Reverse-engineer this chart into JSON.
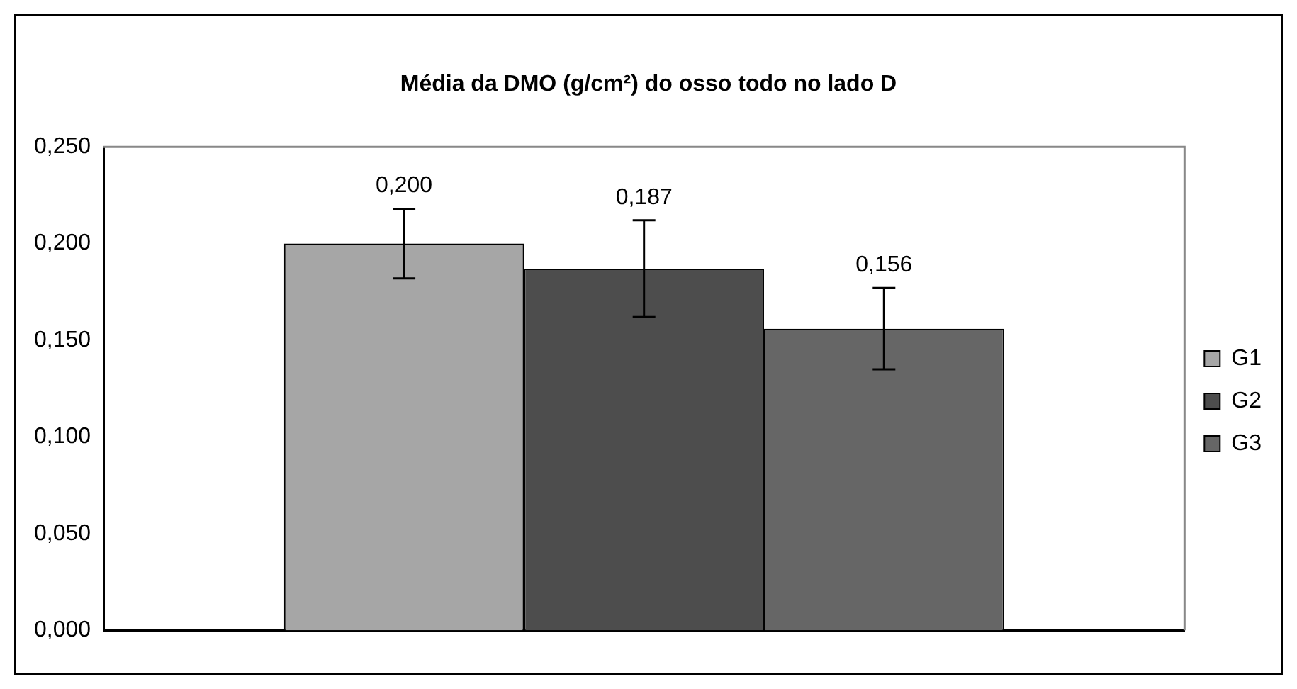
{
  "chart_data": {
    "type": "bar",
    "title": "Média da DMO (g/cm²) do osso todo no lado D",
    "categories": [
      null
    ],
    "series": [
      {
        "name": "G1",
        "color": "#a6a6a6",
        "values": [
          0.2
        ],
        "errors": [
          0.018
        ],
        "value_labels": [
          "0,200"
        ]
      },
      {
        "name": "G2",
        "color": "#4d4d4d",
        "values": [
          0.187
        ],
        "errors": [
          0.025
        ],
        "value_labels": [
          "0,187"
        ]
      },
      {
        "name": "G3",
        "color": "#666666",
        "values": [
          0.156
        ],
        "errors": [
          0.021
        ],
        "value_labels": [
          "0,156"
        ]
      }
    ],
    "ylim": [
      0,
      0.25
    ],
    "yticks": [
      {
        "value": 0,
        "label": "0,000"
      },
      {
        "value": 0.05,
        "label": "0,050"
      },
      {
        "value": 0.1,
        "label": "0,100"
      },
      {
        "value": 0.15,
        "label": "0,150"
      },
      {
        "value": 0.2,
        "label": "0,200"
      },
      {
        "value": 0.25,
        "label": "0,250"
      }
    ],
    "grid": false,
    "legend": "right"
  }
}
